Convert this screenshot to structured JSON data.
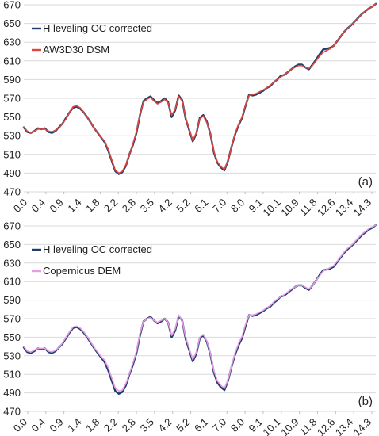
{
  "chart_data": [
    {
      "type": "line",
      "panel_label": "(a)",
      "ylim": [
        470,
        670
      ],
      "yticks": [
        470,
        490,
        510,
        530,
        550,
        570,
        590,
        610,
        630,
        650,
        670
      ],
      "xtick_labels": [
        "0.0",
        "0.4",
        "0.9",
        "1.4",
        "1.8",
        "2.2",
        "2.8",
        "3.5",
        "4.2",
        "5.2",
        "6.1",
        "7.0",
        "8.0",
        "9.1",
        "10.1",
        "10.9",
        "11.8",
        "12.6",
        "13.4",
        "14.3"
      ],
      "grid": true,
      "legend_position": "top-left",
      "x": [
        0,
        2,
        4,
        6,
        8,
        10,
        12,
        14,
        16,
        18,
        20,
        22,
        24,
        26,
        28,
        30,
        32,
        34,
        36,
        38,
        40,
        42,
        44,
        46,
        48,
        50,
        52,
        54,
        56,
        58,
        60,
        62,
        64,
        66,
        68,
        70,
        72,
        74,
        76,
        78,
        80,
        82,
        84,
        86,
        88,
        90,
        92,
        94,
        96,
        98,
        100,
        102,
        104,
        106,
        108,
        110,
        112,
        114,
        116,
        118,
        120,
        122,
        124,
        126,
        128,
        130,
        132,
        134,
        136,
        138,
        140,
        142,
        144,
        146,
        148,
        150,
        152,
        154,
        156,
        158,
        160,
        162,
        164,
        166,
        168,
        170,
        172,
        174,
        176,
        178,
        180,
        182,
        184,
        186,
        188,
        190,
        192,
        194,
        196,
        198,
        200
      ],
      "series": [
        {
          "name": "H leveling OC corrected",
          "color": "#1f3d6b",
          "values": [
            539,
            534,
            533,
            535,
            538,
            537,
            538,
            534,
            533,
            535,
            539,
            543,
            549,
            555,
            560,
            561,
            559,
            555,
            550,
            544,
            538,
            533,
            528,
            523,
            514,
            503,
            492,
            489,
            491,
            498,
            510,
            520,
            533,
            552,
            567,
            570,
            572,
            568,
            565,
            567,
            570,
            566,
            550,
            557,
            573,
            568,
            548,
            536,
            524,
            532,
            549,
            552,
            545,
            532,
            512,
            501,
            496,
            493,
            503,
            518,
            531,
            541,
            549,
            562,
            574,
            573,
            574,
            576,
            578,
            581,
            583,
            587,
            590,
            594,
            595,
            598,
            601,
            604,
            606,
            606,
            603,
            601,
            606,
            611,
            617,
            622,
            623,
            624,
            626,
            631,
            636,
            641,
            645,
            648,
            652,
            656,
            660,
            663,
            666,
            668,
            671
          ]
        },
        {
          "name": "AW3D30 DSM",
          "color": "#e0453a",
          "values": [
            539,
            535,
            533,
            535,
            537,
            537,
            537,
            535,
            534,
            536,
            538,
            543,
            548,
            555,
            561,
            562,
            560,
            555,
            550,
            544,
            538,
            533,
            528,
            524,
            515,
            504,
            493,
            490,
            492,
            499,
            510,
            521,
            534,
            553,
            566,
            569,
            571,
            567,
            564,
            566,
            569,
            565,
            552,
            558,
            572,
            567,
            549,
            537,
            525,
            533,
            548,
            551,
            544,
            532,
            513,
            502,
            497,
            494,
            503,
            518,
            532,
            542,
            550,
            563,
            573,
            574,
            575,
            577,
            579,
            581,
            584,
            587,
            590,
            593,
            595,
            598,
            601,
            603,
            605,
            605,
            603,
            602,
            605,
            610,
            615,
            619,
            621,
            623,
            626,
            631,
            636,
            641,
            645,
            648,
            652,
            656,
            660,
            663,
            666,
            668,
            671
          ]
        }
      ]
    },
    {
      "type": "line",
      "panel_label": "(b)",
      "ylim": [
        470,
        670
      ],
      "yticks": [
        470,
        490,
        510,
        530,
        550,
        570,
        590,
        610,
        630,
        650,
        670
      ],
      "xtick_labels": [
        "0.0",
        "0.4",
        "0.9",
        "1.4",
        "1.8",
        "2.2",
        "2.8",
        "3.5",
        "4.2",
        "5.2",
        "6.1",
        "7.0",
        "8.0",
        "9.1",
        "10.1",
        "10.9",
        "11.8",
        "12.6",
        "13.4",
        "14.3"
      ],
      "grid": true,
      "legend_position": "top-left",
      "x": [
        0,
        2,
        4,
        6,
        8,
        10,
        12,
        14,
        16,
        18,
        20,
        22,
        24,
        26,
        28,
        30,
        32,
        34,
        36,
        38,
        40,
        42,
        44,
        46,
        48,
        50,
        52,
        54,
        56,
        58,
        60,
        62,
        64,
        66,
        68,
        70,
        72,
        74,
        76,
        78,
        80,
        82,
        84,
        86,
        88,
        90,
        92,
        94,
        96,
        98,
        100,
        102,
        104,
        106,
        108,
        110,
        112,
        114,
        116,
        118,
        120,
        122,
        124,
        126,
        128,
        130,
        132,
        134,
        136,
        138,
        140,
        142,
        144,
        146,
        148,
        150,
        152,
        154,
        156,
        158,
        160,
        162,
        164,
        166,
        168,
        170,
        172,
        174,
        176,
        178,
        180,
        182,
        184,
        186,
        188,
        190,
        192,
        194,
        196,
        198,
        200
      ],
      "series": [
        {
          "name": "H leveling OC corrected",
          "color": "#1f3d6b",
          "values": [
            539,
            534,
            533,
            535,
            538,
            537,
            538,
            534,
            533,
            535,
            539,
            543,
            549,
            555,
            560,
            561,
            559,
            555,
            550,
            544,
            538,
            533,
            528,
            523,
            514,
            503,
            492,
            489,
            491,
            498,
            510,
            520,
            533,
            552,
            567,
            570,
            572,
            568,
            565,
            567,
            570,
            566,
            550,
            557,
            573,
            568,
            548,
            536,
            524,
            532,
            549,
            552,
            545,
            532,
            512,
            501,
            496,
            493,
            503,
            518,
            531,
            541,
            549,
            562,
            574,
            573,
            574,
            576,
            578,
            581,
            583,
            587,
            590,
            594,
            595,
            598,
            601,
            604,
            606,
            606,
            603,
            601,
            606,
            611,
            617,
            622,
            623,
            624,
            626,
            631,
            636,
            641,
            645,
            648,
            652,
            656,
            660,
            663,
            666,
            668,
            671
          ]
        },
        {
          "name": "Copernicus DEM",
          "color": "#e59be6",
          "values": [
            540,
            535,
            534,
            536,
            538,
            538,
            538,
            535,
            534,
            536,
            539,
            544,
            550,
            556,
            561,
            562,
            560,
            556,
            551,
            545,
            539,
            534,
            529,
            525,
            517,
            506,
            495,
            492,
            493,
            500,
            511,
            522,
            535,
            554,
            567,
            570,
            571,
            568,
            566,
            568,
            570,
            566,
            552,
            559,
            574,
            568,
            550,
            538,
            526,
            534,
            550,
            553,
            546,
            533,
            514,
            503,
            498,
            495,
            504,
            519,
            533,
            543,
            551,
            564,
            574,
            574,
            575,
            577,
            579,
            582,
            584,
            588,
            591,
            594,
            596,
            599,
            602,
            604,
            606,
            606,
            604,
            602,
            606,
            611,
            616,
            621,
            623,
            625,
            627,
            632,
            637,
            642,
            646,
            649,
            653,
            657,
            661,
            664,
            667,
            669,
            671
          ]
        }
      ]
    }
  ]
}
